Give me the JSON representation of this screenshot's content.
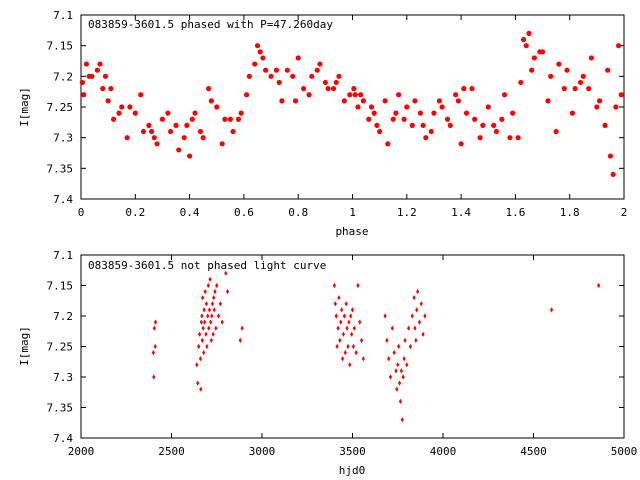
{
  "chart_data": [
    {
      "type": "scatter",
      "title": "083859-3601.5 phased with P=47.260day",
      "xlabel": "phase",
      "ylabel": "I[mag]",
      "xlim": [
        0,
        2
      ],
      "ylim": [
        7.1,
        7.4
      ],
      "y_inverted": true,
      "grid": false,
      "legend": "none",
      "marker": "filled-circle",
      "color": "#ff0000",
      "xticks": [
        0,
        0.2,
        0.4,
        0.6,
        0.8,
        1,
        1.2,
        1.4,
        1.6,
        1.8,
        2
      ],
      "xtick_labels": [
        "0",
        "0.2",
        "0.4",
        "0.6",
        "0.8",
        "1",
        "1.2",
        "1.4",
        "1.6",
        "1.8",
        "2"
      ],
      "yticks": [
        7.1,
        7.15,
        7.2,
        7.25,
        7.3,
        7.35,
        7.4
      ],
      "ytick_labels": [
        "7.1",
        "7.15",
        "7.2",
        "7.25",
        "7.3",
        "7.35",
        "7.4"
      ],
      "series": [
        {
          "x": [
            0.005,
            0.02,
            0.04,
            0.06,
            0.08,
            0.1,
            0.12,
            0.15,
            0.17,
            0.2,
            0.22,
            0.25,
            0.27,
            0.3,
            0.33,
            0.36,
            0.39,
            0.42,
            0.45,
            0.47,
            0.5,
            0.53,
            0.56,
            0.59,
            0.62,
            0.64,
            0.67,
            0.7,
            0.73,
            0.76,
            0.79,
            0.82,
            0.85,
            0.88,
            0.91,
            0.94,
            0.97,
            0.99,
            1.005,
            1.02,
            1.04,
            1.06,
            1.08,
            1.1,
            1.12,
            1.15,
            1.17,
            1.2,
            1.22,
            1.25,
            1.27,
            1.3,
            1.33,
            1.36,
            1.39,
            1.42,
            1.45,
            1.47,
            1.5,
            1.53,
            1.56,
            1.59,
            1.62,
            1.64,
            1.67,
            1.7,
            1.73,
            1.76,
            1.79,
            1.82,
            1.85,
            1.88,
            1.91,
            1.94,
            1.97,
            1.99,
            0.03,
            0.07,
            0.11,
            0.18,
            0.23,
            0.28,
            0.35,
            0.41,
            0.48,
            0.55,
            0.61,
            0.66,
            0.72,
            0.78,
            0.84,
            0.9,
            0.95,
            1.03,
            1.09,
            1.16,
            1.23,
            1.29,
            1.35,
            1.41,
            1.48,
            1.55,
            1.61,
            1.66,
            1.72,
            1.78,
            1.84,
            1.9,
            1.95,
            1.98,
            0.01,
            0.09,
            0.14,
            0.26,
            0.32,
            0.38,
            0.44,
            0.52,
            0.58,
            0.68,
            0.74,
            0.8,
            0.87,
            0.93,
            1.01,
            1.07,
            1.13,
            1.19,
            1.26,
            1.32,
            1.38,
            1.44,
            1.52,
            1.58,
            1.63,
            1.69,
            1.75,
            1.81,
            1.87,
            1.93,
            1.96,
            0.65,
            1.65,
            0.4,
            1.4
          ],
          "y": [
            7.21,
            7.18,
            7.2,
            7.19,
            7.22,
            7.24,
            7.27,
            7.25,
            7.3,
            7.26,
            7.23,
            7.28,
            7.3,
            7.27,
            7.29,
            7.32,
            7.28,
            7.26,
            7.3,
            7.22,
            7.25,
            7.27,
            7.29,
            7.26,
            7.2,
            7.18,
            7.17,
            7.2,
            7.21,
            7.19,
            7.24,
            7.22,
            7.2,
            7.18,
            7.22,
            7.21,
            7.24,
            7.23,
            7.22,
            7.25,
            7.24,
            7.27,
            7.26,
            7.29,
            7.24,
            7.27,
            7.23,
            7.25,
            7.28,
            7.26,
            7.3,
            7.26,
            7.25,
            7.28,
            7.24,
            7.26,
            7.27,
            7.3,
            7.25,
            7.29,
            7.23,
            7.26,
            7.21,
            7.15,
            7.17,
            7.16,
            7.2,
            7.18,
            7.19,
            7.22,
            7.2,
            7.17,
            7.24,
            7.19,
            7.25,
            7.23,
            7.2,
            7.18,
            7.22,
            7.25,
            7.29,
            7.31,
            7.28,
            7.27,
            7.24,
            7.27,
            7.23,
            7.16,
            7.19,
            7.2,
            7.23,
            7.21,
            7.2,
            7.23,
            7.28,
            7.26,
            7.24,
            7.29,
            7.27,
            7.22,
            7.28,
            7.27,
            7.3,
            7.19,
            7.24,
            7.22,
            7.21,
            7.25,
            7.33,
            7.15,
            7.23,
            7.2,
            7.26,
            7.29,
            7.26,
            7.3,
            7.29,
            7.31,
            7.27,
            7.19,
            7.24,
            7.17,
            7.19,
            7.22,
            7.23,
            7.25,
            7.31,
            7.27,
            7.28,
            7.24,
            7.23,
            7.22,
            7.28,
            7.3,
            7.14,
            7.16,
            7.29,
            7.26,
            7.22,
            7.28,
            7.36,
            7.15,
            7.13,
            7.33,
            7.31
          ]
        }
      ]
    },
    {
      "type": "scatter",
      "title": "083859-3601.5 not phased light curve",
      "xlabel": "hjd0",
      "ylabel": "I[mag]",
      "xlim": [
        2000,
        5000
      ],
      "ylim": [
        7.1,
        7.4
      ],
      "y_inverted": true,
      "grid": false,
      "legend": "none",
      "marker": "small-diamond",
      "color": "#ff0000",
      "xticks": [
        2000,
        2500,
        3000,
        3500,
        4000,
        4500,
        5000
      ],
      "xtick_labels": [
        "2000",
        "2500",
        "3000",
        "3500",
        "4000",
        "4500",
        "5000"
      ],
      "yticks": [
        7.1,
        7.15,
        7.2,
        7.25,
        7.3,
        7.35,
        7.4
      ],
      "ytick_labels": [
        "7.1",
        "7.15",
        "7.2",
        "7.25",
        "7.3",
        "7.35",
        "7.4"
      ],
      "series": [
        {
          "x": [
            2400,
            2402,
            2405,
            2410,
            2412,
            2640,
            2645,
            2650,
            2655,
            2660,
            2662,
            2665,
            2668,
            2670,
            2672,
            2675,
            2678,
            2680,
            2683,
            2686,
            2690,
            2693,
            2696,
            2700,
            2703,
            2706,
            2710,
            2713,
            2716,
            2720,
            2723,
            2726,
            2730,
            2733,
            2736,
            2740,
            2745,
            2750,
            2760,
            2770,
            2780,
            2800,
            2810,
            2880,
            2890,
            3400,
            3405,
            3410,
            3415,
            3420,
            3425,
            3430,
            3435,
            3440,
            3445,
            3450,
            3455,
            3460,
            3465,
            3470,
            3475,
            3480,
            3485,
            3490,
            3495,
            3500,
            3505,
            3510,
            3520,
            3530,
            3540,
            3550,
            3560,
            3680,
            3690,
            3700,
            3710,
            3720,
            3730,
            3740,
            3745,
            3750,
            3755,
            3760,
            3765,
            3770,
            3775,
            3780,
            3785,
            3790,
            3800,
            3810,
            3820,
            3830,
            3840,
            3845,
            3850,
            3855,
            3860,
            3870,
            3880,
            3890,
            3900,
            4600,
            4860
          ],
          "y": [
            7.26,
            7.3,
            7.22,
            7.25,
            7.21,
            7.28,
            7.31,
            7.25,
            7.23,
            7.27,
            7.32,
            7.21,
            7.2,
            7.24,
            7.17,
            7.22,
            7.26,
            7.19,
            7.21,
            7.16,
            7.23,
            7.18,
            7.25,
            7.2,
            7.15,
            7.22,
            7.19,
            7.14,
            7.21,
            7.24,
            7.2,
            7.18,
            7.23,
            7.17,
            7.19,
            7.16,
            7.22,
            7.15,
            7.2,
            7.18,
            7.21,
            7.13,
            7.16,
            7.24,
            7.22,
            7.15,
            7.18,
            7.2,
            7.25,
            7.22,
            7.17,
            7.24,
            7.21,
            7.19,
            7.27,
            7.23,
            7.2,
            7.26,
            7.18,
            7.22,
            7.25,
            7.21,
            7.28,
            7.2,
            7.23,
            7.19,
            7.25,
            7.22,
            7.26,
            7.15,
            7.21,
            7.24,
            7.27,
            7.2,
            7.24,
            7.27,
            7.3,
            7.22,
            7.26,
            7.29,
            7.32,
            7.28,
            7.25,
            7.31,
            7.34,
            7.29,
            7.37,
            7.3,
            7.27,
            7.24,
            7.28,
            7.22,
            7.25,
            7.2,
            7.17,
            7.22,
            7.24,
            7.19,
            7.16,
            7.21,
            7.18,
            7.23,
            7.2,
            7.19,
            7.15
          ]
        }
      ]
    }
  ]
}
